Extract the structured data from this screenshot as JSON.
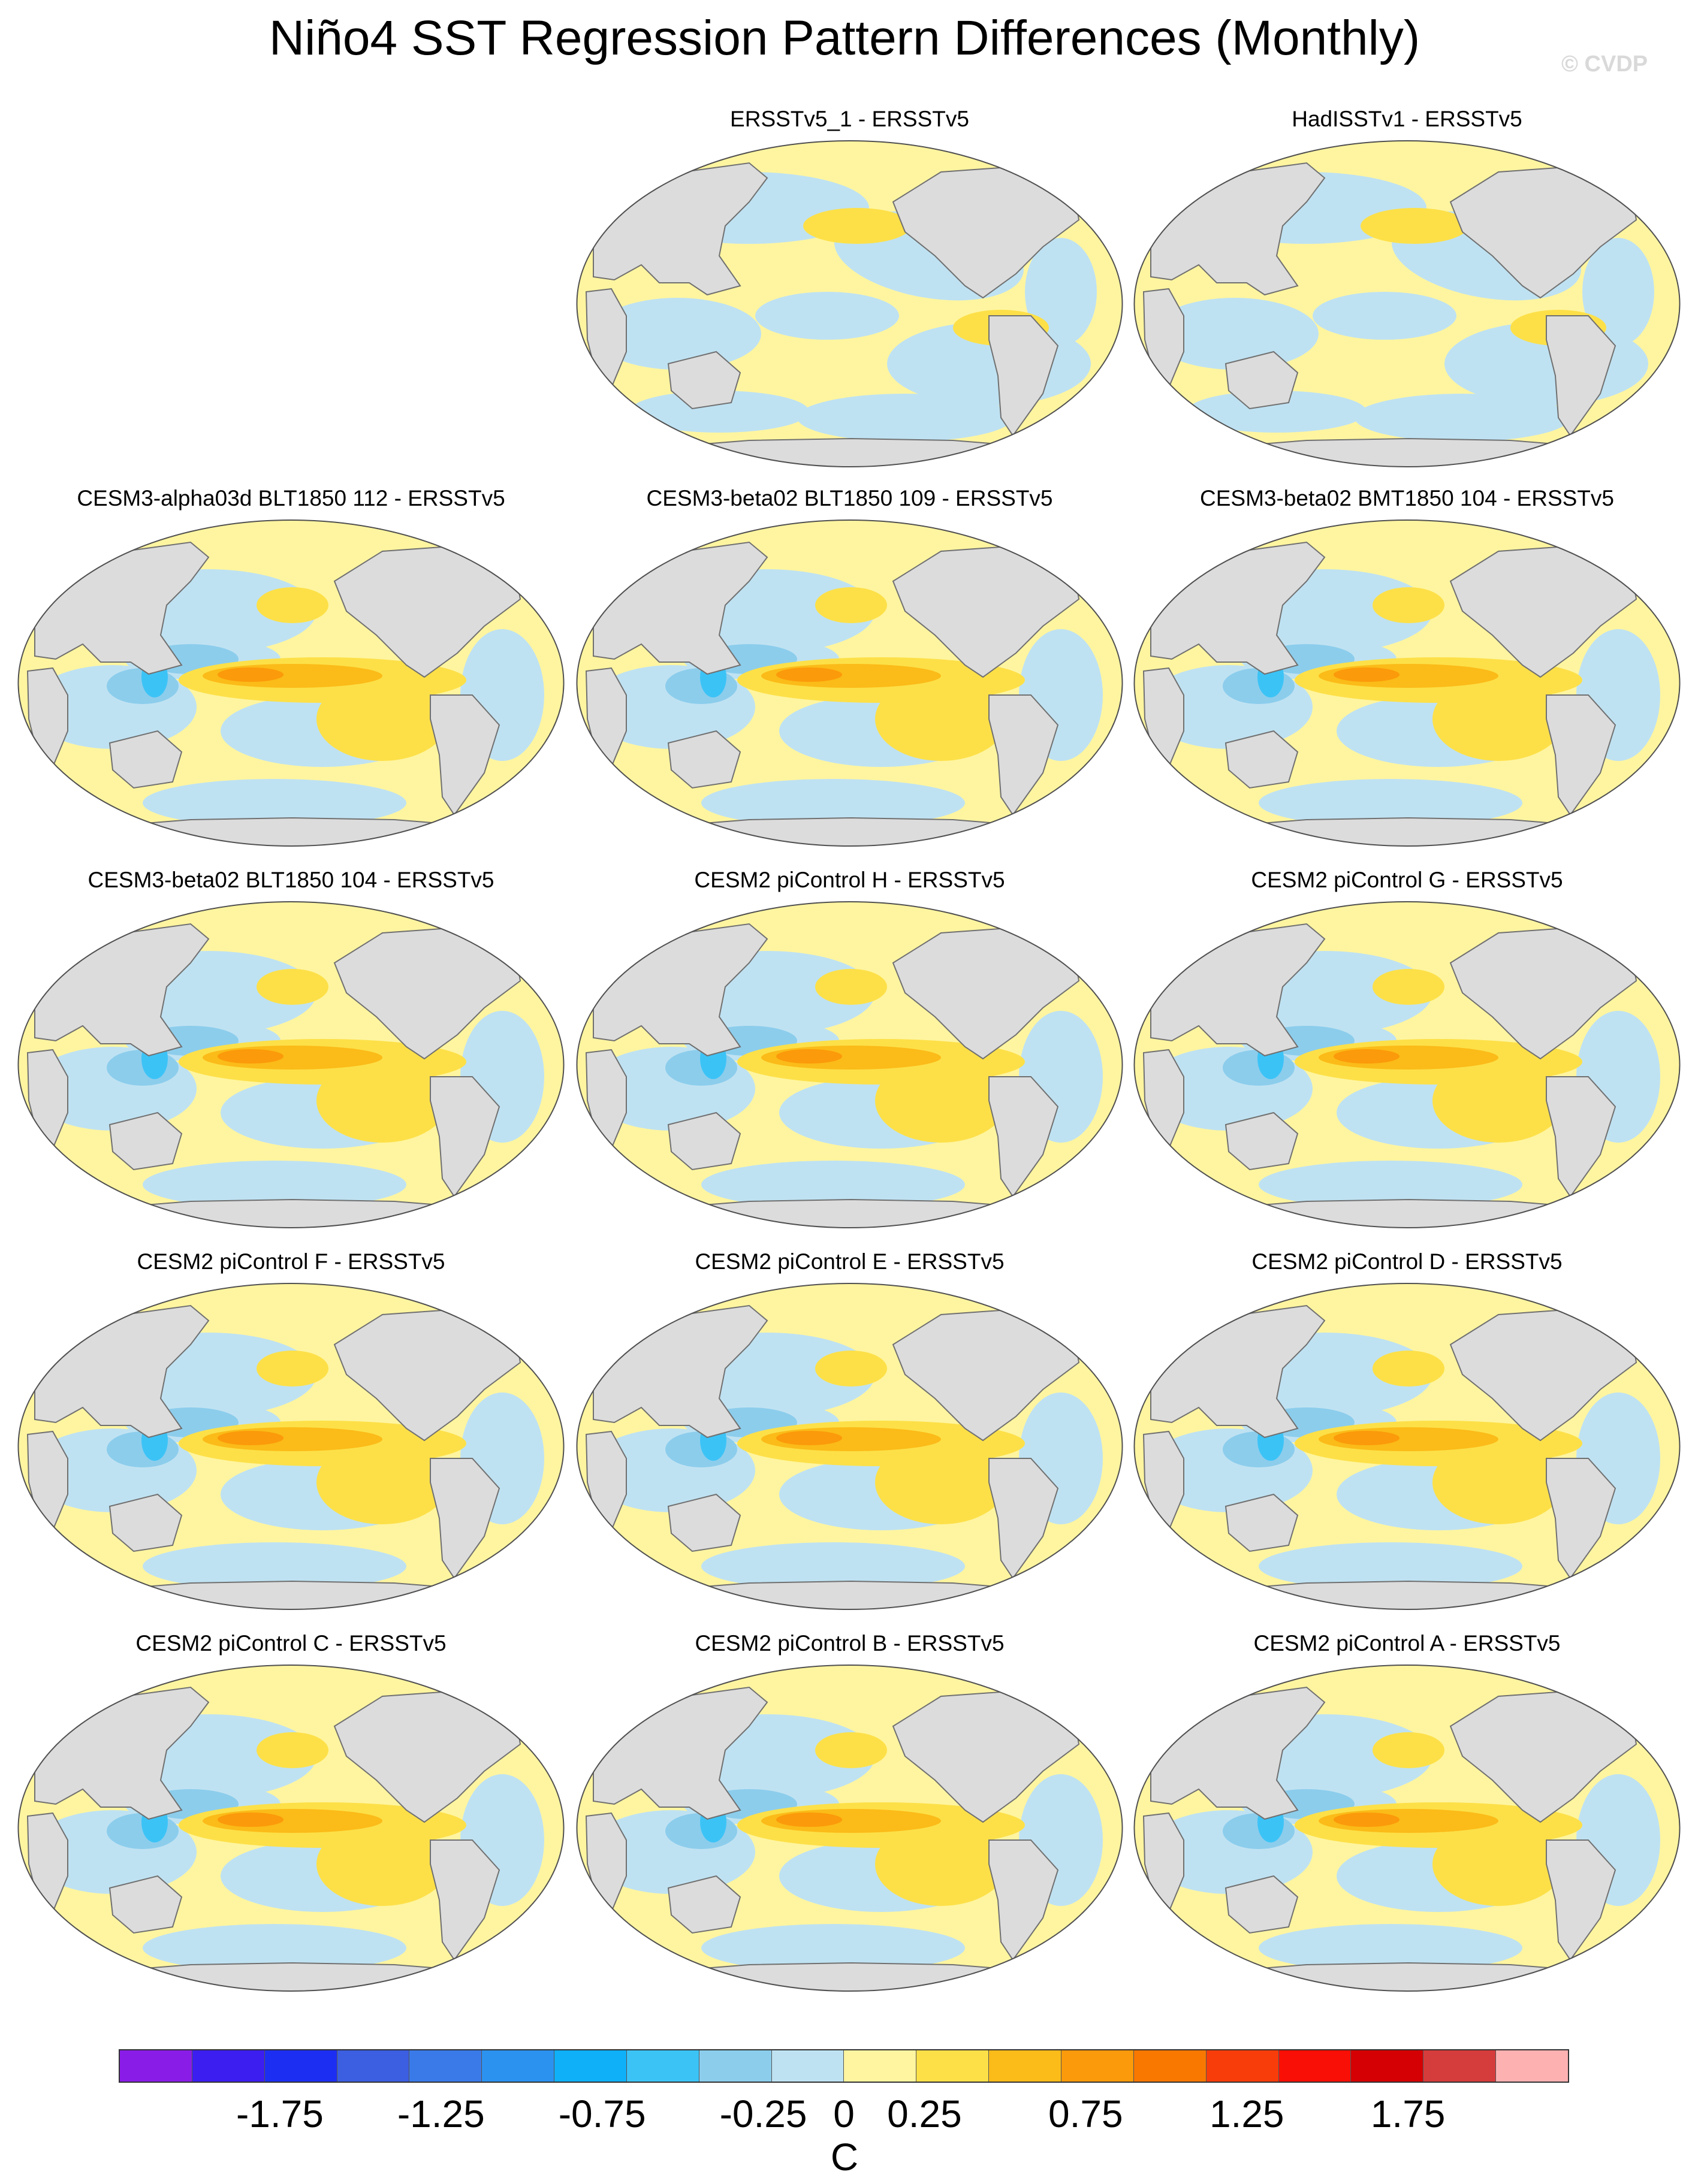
{
  "title": "Niño4 SST Regression Pattern Differences (Monthly)",
  "copyright": "© CVDP",
  "colors": {
    "land": "#dcdcdc",
    "coast": "#707070",
    "outline": "#505050"
  },
  "panels": [
    {
      "title": "ERSSTv5_1 - ERSSTv5",
      "pattern": "weak"
    },
    {
      "title": "HadISSTv1 - ERSSTv5",
      "pattern": "weak"
    },
    {
      "title": "CESM3-alpha03d BLT1850 112 - ERSSTv5",
      "pattern": "model"
    },
    {
      "title": "CESM3-beta02 BLT1850 109 - ERSSTv5",
      "pattern": "model"
    },
    {
      "title": "CESM3-beta02 BMT1850 104 - ERSSTv5",
      "pattern": "model"
    },
    {
      "title": "CESM3-beta02 BLT1850 104 - ERSSTv5",
      "pattern": "model"
    },
    {
      "title": "CESM2 piControl H - ERSSTv5",
      "pattern": "model"
    },
    {
      "title": "CESM2 piControl G - ERSSTv5",
      "pattern": "model"
    },
    {
      "title": "CESM2 piControl F - ERSSTv5",
      "pattern": "model"
    },
    {
      "title": "CESM2 piControl E - ERSSTv5",
      "pattern": "model"
    },
    {
      "title": "CESM2 piControl D - ERSSTv5",
      "pattern": "model"
    },
    {
      "title": "CESM2 piControl C - ERSSTv5",
      "pattern": "model"
    },
    {
      "title": "CESM2 piControl B - ERSSTv5",
      "pattern": "model"
    },
    {
      "title": "CESM2 piControl A - ERSSTv5",
      "pattern": "model"
    }
  ],
  "colorbar": {
    "colors": [
      "#8a1ce8",
      "#3c1ef0",
      "#1c2ef2",
      "#3c5ee0",
      "#3a7ae8",
      "#2b92f0",
      "#0fb0f8",
      "#3cc3f6",
      "#8ccdec",
      "#bfe2f2",
      "#fff5a0",
      "#fde048",
      "#fbbb18",
      "#fb9a0a",
      "#f97800",
      "#f93d0a",
      "#f90f05",
      "#d50003",
      "#d53c3c",
      "#fdb1b1"
    ],
    "levels": [
      "-1.75",
      "-1.25",
      "-0.75",
      "-0.25",
      "0",
      "0.25",
      "0.75",
      "1.25",
      "1.75"
    ],
    "level_values": [
      -1.75,
      -1.25,
      -0.75,
      -0.25,
      0,
      0.25,
      0.75,
      1.25,
      1.75
    ],
    "range": [
      -2.25,
      2.25
    ],
    "unit": "C"
  }
}
